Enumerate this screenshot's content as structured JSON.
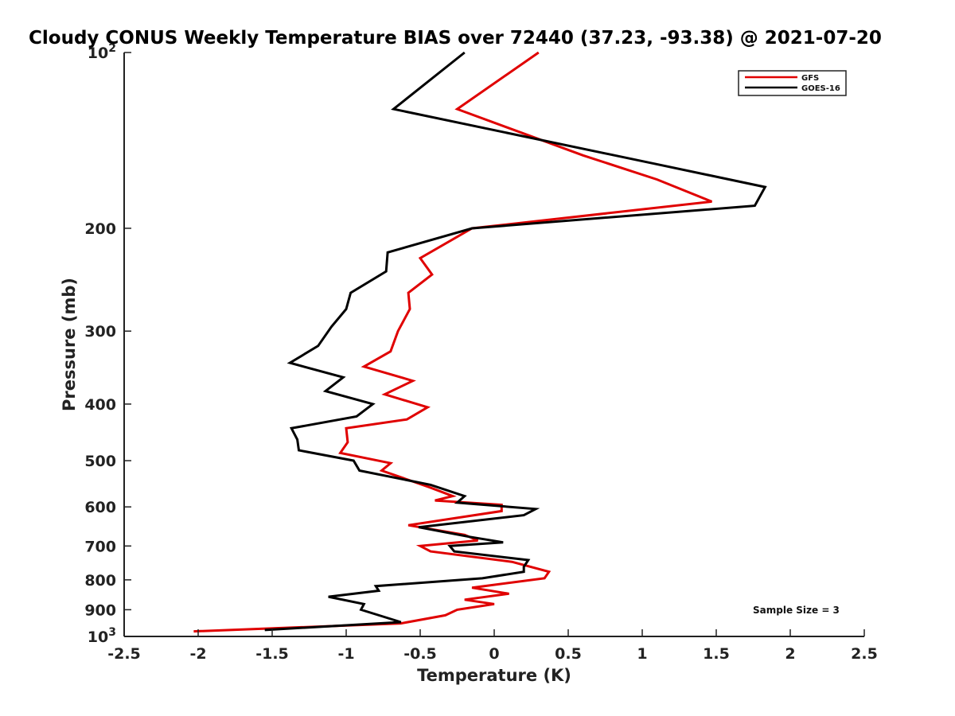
{
  "chart_data": {
    "type": "line",
    "title": "Cloudy CONUS Weekly Temperature BIAS over 72440 (37.23, -93.38) @ 2021-07-20",
    "xlabel": "Temperature (K)",
    "ylabel": "Pressure (mb)",
    "xlim": [
      -2.5,
      2.5
    ],
    "ylim": [
      1000,
      100
    ],
    "y_scale": "log",
    "y_reversed": true,
    "x_ticks": [
      -2.5,
      -2,
      -1.5,
      -1,
      -0.5,
      0,
      0.5,
      1,
      1.5,
      2,
      2.5
    ],
    "x_tick_labels": [
      "-2.5",
      "-2",
      "-1.5",
      "-1",
      "-0.5",
      "0",
      "0.5",
      "1",
      "1.5",
      "2",
      "2.5"
    ],
    "y_ticks": [
      {
        "value": 100,
        "base": "10",
        "exp": "2"
      },
      {
        "value": 200,
        "label": "200"
      },
      {
        "value": 300,
        "label": "300"
      },
      {
        "value": 400,
        "label": "400"
      },
      {
        "value": 500,
        "label": "500"
      },
      {
        "value": 600,
        "label": "600"
      },
      {
        "value": 700,
        "label": "700"
      },
      {
        "value": 800,
        "label": "800"
      },
      {
        "value": 900,
        "label": "900"
      },
      {
        "value": 1000,
        "base": "10",
        "exp": "3"
      }
    ],
    "grid": false,
    "legend_position": "top-right",
    "annotation": "Sample Size = 3",
    "series": [
      {
        "name": "GFS",
        "color": "#e00000",
        "points": [
          [
            0.3,
            100
          ],
          [
            -0.25,
            125
          ],
          [
            0.6,
            150
          ],
          [
            1.1,
            165
          ],
          [
            1.47,
            180
          ],
          [
            -0.15,
            200
          ],
          [
            -0.5,
            225
          ],
          [
            -0.42,
            240
          ],
          [
            -0.58,
            258
          ],
          [
            -0.57,
            275
          ],
          [
            -0.65,
            300
          ],
          [
            -0.7,
            325
          ],
          [
            -0.88,
            345
          ],
          [
            -0.55,
            365
          ],
          [
            -0.74,
            385
          ],
          [
            -0.45,
            405
          ],
          [
            -0.59,
            425
          ],
          [
            -1.0,
            440
          ],
          [
            -0.99,
            465
          ],
          [
            -1.04,
            485
          ],
          [
            -0.7,
            505
          ],
          [
            -0.76,
            520
          ],
          [
            -0.44,
            555
          ],
          [
            -0.28,
            575
          ],
          [
            -0.4,
            585
          ],
          [
            0.05,
            595
          ],
          [
            0.05,
            610
          ],
          [
            -0.58,
            645
          ],
          [
            -0.2,
            670
          ],
          [
            -0.11,
            685
          ],
          [
            -0.5,
            700
          ],
          [
            -0.43,
            715
          ],
          [
            0.12,
            745
          ],
          [
            0.37,
            775
          ],
          [
            0.34,
            795
          ],
          [
            -0.15,
            825
          ],
          [
            0.1,
            845
          ],
          [
            -0.2,
            865
          ],
          [
            0.0,
            880
          ],
          [
            -0.25,
            900
          ],
          [
            -0.33,
            920
          ],
          [
            -0.63,
            950
          ],
          [
            -2.03,
            980
          ]
        ]
      },
      {
        "name": "GOES-16",
        "color": "#000000",
        "points": [
          [
            -0.2,
            100
          ],
          [
            -0.68,
            125
          ],
          [
            1.08,
            155
          ],
          [
            1.83,
            170
          ],
          [
            1.76,
            183
          ],
          [
            -0.15,
            200
          ],
          [
            -0.72,
            220
          ],
          [
            -0.73,
            237
          ],
          [
            -0.97,
            258
          ],
          [
            -1.0,
            275
          ],
          [
            -1.1,
            295
          ],
          [
            -1.19,
            318
          ],
          [
            -1.38,
            340
          ],
          [
            -1.02,
            360
          ],
          [
            -1.14,
            380
          ],
          [
            -0.82,
            400
          ],
          [
            -0.93,
            420
          ],
          [
            -1.37,
            440
          ],
          [
            -1.33,
            460
          ],
          [
            -1.32,
            480
          ],
          [
            -0.95,
            500
          ],
          [
            -0.91,
            520
          ],
          [
            -0.43,
            550
          ],
          [
            -0.2,
            575
          ],
          [
            -0.25,
            590
          ],
          [
            0.28,
            605
          ],
          [
            0.2,
            620
          ],
          [
            -0.51,
            650
          ],
          [
            -0.17,
            675
          ],
          [
            0.06,
            690
          ],
          [
            -0.3,
            700
          ],
          [
            -0.27,
            715
          ],
          [
            0.23,
            740
          ],
          [
            0.2,
            760
          ],
          [
            0.2,
            775
          ],
          [
            -0.08,
            795
          ],
          [
            -0.8,
            820
          ],
          [
            -0.78,
            835
          ],
          [
            -1.12,
            855
          ],
          [
            -0.88,
            880
          ],
          [
            -0.9,
            900
          ],
          [
            -0.63,
            945
          ],
          [
            -1.55,
            975
          ]
        ]
      }
    ]
  }
}
